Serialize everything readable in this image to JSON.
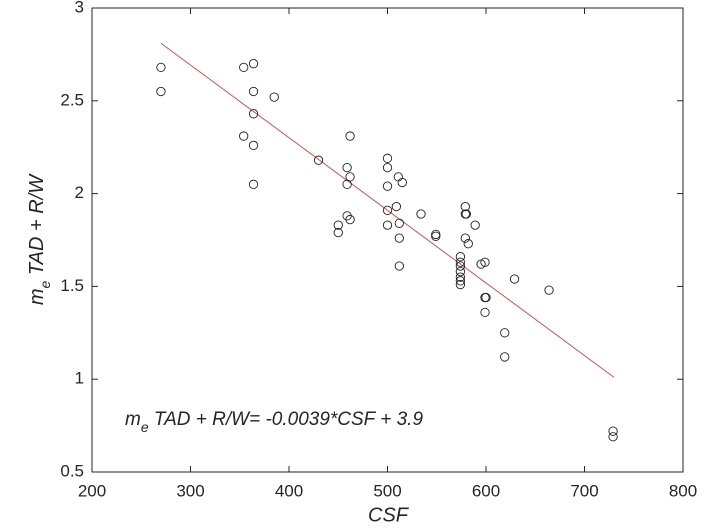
{
  "chart_data": {
    "type": "scatter",
    "xlabel": "CSF",
    "ylabel": {
      "base": "m",
      "sub": "e",
      "rest": " TAD + R/W"
    },
    "annotation": {
      "base": "m",
      "sub": "e",
      "rest": " TAD + R/W= -0.0039*CSF + 3.9",
      "color": "#1a1a9c"
    },
    "xlim": [
      200,
      800
    ],
    "ylim": [
      0.5,
      3
    ],
    "xticks": [
      200,
      300,
      400,
      500,
      600,
      700,
      800
    ],
    "yticks": [
      0.5,
      1,
      1.5,
      2,
      2.5,
      3
    ],
    "marker_color": "#222222",
    "x": [
      270,
      270,
      354,
      364,
      364,
      385,
      364,
      354,
      364,
      364,
      430,
      462,
      459,
      462,
      459,
      459,
      462,
      450,
      450,
      500,
      500,
      500,
      500,
      500,
      511,
      515,
      509,
      512,
      512,
      512,
      534,
      549,
      549,
      579,
      579,
      580,
      589,
      579,
      582,
      574,
      574,
      574,
      574,
      574,
      574,
      574,
      595,
      599,
      629,
      664,
      599,
      600,
      599,
      619,
      619,
      729,
      729
    ],
    "y": [
      2.68,
      2.55,
      2.68,
      2.7,
      2.55,
      2.52,
      2.43,
      2.31,
      2.26,
      2.05,
      2.18,
      2.31,
      2.14,
      2.09,
      2.05,
      1.88,
      1.86,
      1.83,
      1.79,
      2.19,
      2.14,
      2.04,
      1.91,
      1.83,
      2.09,
      2.06,
      1.93,
      1.84,
      1.76,
      1.61,
      1.89,
      1.78,
      1.77,
      1.93,
      1.89,
      1.89,
      1.83,
      1.76,
      1.73,
      1.66,
      1.63,
      1.61,
      1.58,
      1.55,
      1.53,
      1.51,
      1.62,
      1.63,
      1.54,
      1.48,
      1.44,
      1.44,
      1.36,
      1.25,
      1.12,
      0.72,
      0.69
    ],
    "fit": {
      "color": "#c4574b",
      "x": [
        270,
        730
      ],
      "y": [
        2.81,
        1.01
      ]
    }
  }
}
